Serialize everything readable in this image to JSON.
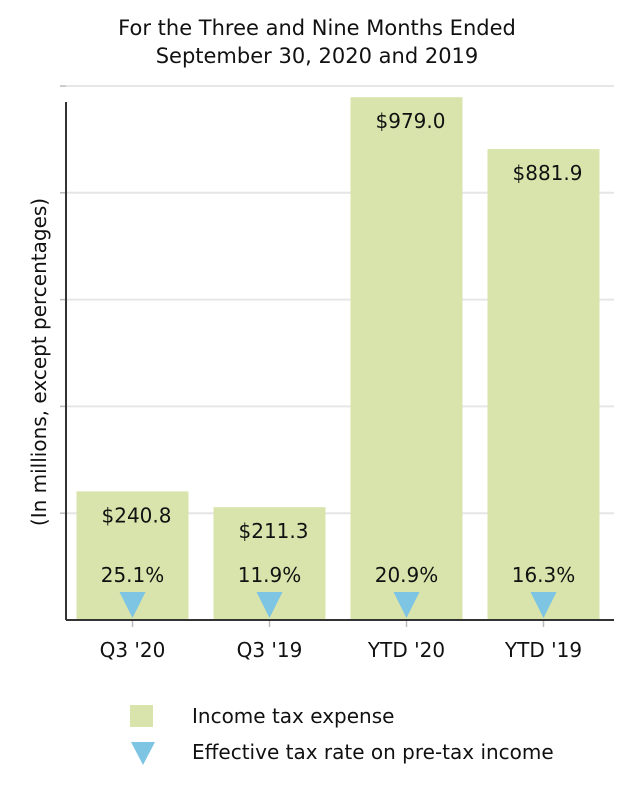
{
  "chart_data": {
    "type": "bar",
    "title": [
      "For the Three and Nine Months Ended",
      "September 30, 2020 and 2019"
    ],
    "ylabel": "(In millions, except percentages)",
    "xlabel": "",
    "categories": [
      "Q3 '20",
      "Q3 '19",
      "YTD '20",
      "YTD '19"
    ],
    "series": [
      {
        "name": "Income tax expense",
        "kind": "bar",
        "color": "#d9e4ac",
        "values": [
          240.8,
          211.3,
          979.0,
          881.9
        ],
        "labels": [
          "$240.8",
          "$211.3",
          "$979.0",
          "$881.9"
        ]
      },
      {
        "name": "Effective tax rate on pre-tax income",
        "kind": "marker",
        "marker": "triangle-down",
        "color": "#7ec4e3",
        "values": [
          25.1,
          11.9,
          20.9,
          16.3
        ],
        "labels": [
          "25.1%",
          "11.9%",
          "20.9%",
          "16.3%"
        ]
      }
    ],
    "ylim": [
      0,
      1000
    ],
    "yticks": [
      0,
      200,
      400,
      600,
      800,
      1000
    ],
    "grid": true,
    "legend_position": "bottom"
  }
}
